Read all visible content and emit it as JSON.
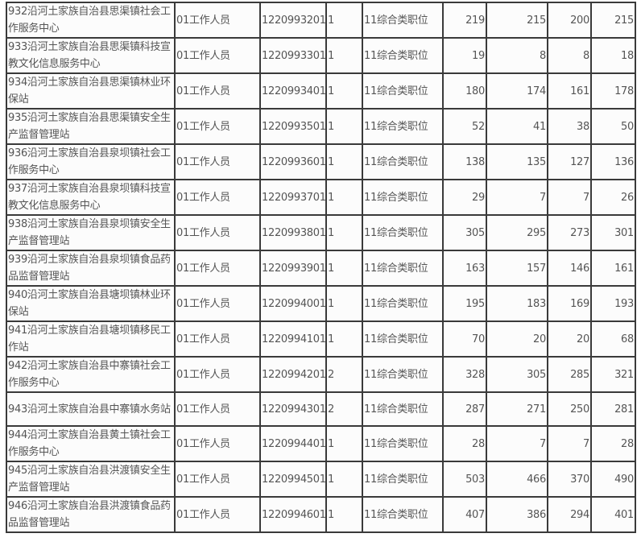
{
  "table": {
    "rows": [
      {
        "name": "932沿河土家族自治县思渠镇社会工作服务中心",
        "position": "01工作人员",
        "code": "1220993201",
        "count": "1",
        "category": "11综合类职位",
        "v1": "219",
        "v2": "215",
        "v3": "200",
        "v4": "215"
      },
      {
        "name": "933沿河土家族自治县思渠镇科技宣教文化信息服务中心",
        "position": "01工作人员",
        "code": "1220993301",
        "count": "1",
        "category": "11综合类职位",
        "v1": "19",
        "v2": "8",
        "v3": "8",
        "v4": "18"
      },
      {
        "name": "934沿河土家族自治县思渠镇林业环保站",
        "position": "01工作人员",
        "code": "1220993401",
        "count": "1",
        "category": "11综合类职位",
        "v1": "180",
        "v2": "174",
        "v3": "161",
        "v4": "178"
      },
      {
        "name": "935沿河土家族自治县思渠镇安全生产监督管理站",
        "position": "01工作人员",
        "code": "1220993501",
        "count": "1",
        "category": "11综合类职位",
        "v1": "52",
        "v2": "41",
        "v3": "38",
        "v4": "50"
      },
      {
        "name": "936沿河土家族自治县泉坝镇社会工作服务中心",
        "position": "01工作人员",
        "code": "1220993601",
        "count": "1",
        "category": "11综合类职位",
        "v1": "138",
        "v2": "135",
        "v3": "127",
        "v4": "136"
      },
      {
        "name": "937沿河土家族自治县泉坝镇科技宣教文化信息服务中心",
        "position": "01工作人员",
        "code": "1220993701",
        "count": "1",
        "category": "11综合类职位",
        "v1": "29",
        "v2": "7",
        "v3": "7",
        "v4": "26"
      },
      {
        "name": "938沿河土家族自治县泉坝镇安全生产监督管理站",
        "position": "01工作人员",
        "code": "1220993801",
        "count": "1",
        "category": "11综合类职位",
        "v1": "305",
        "v2": "295",
        "v3": "273",
        "v4": "301"
      },
      {
        "name": "939沿河土家族自治县泉坝镇食品药品监督管理站",
        "position": "01工作人员",
        "code": "1220993901",
        "count": "1",
        "category": "11综合类职位",
        "v1": "163",
        "v2": "157",
        "v3": "146",
        "v4": "161"
      },
      {
        "name": "940沿河土家族自治县塘坝镇林业环保站",
        "position": "01工作人员",
        "code": "1220994001",
        "count": "1",
        "category": "11综合类职位",
        "v1": "195",
        "v2": "183",
        "v3": "169",
        "v4": "193"
      },
      {
        "name": "941沿河土家族自治县塘坝镇移民工作站",
        "position": "01工作人员",
        "code": "1220994101",
        "count": "1",
        "category": "11综合类职位",
        "v1": "70",
        "v2": "20",
        "v3": "20",
        "v4": "68"
      },
      {
        "name": "942沿河土家族自治县中寨镇社会工作服务中心",
        "position": "01工作人员",
        "code": "1220994201",
        "count": "2",
        "category": "11综合类职位",
        "v1": "328",
        "v2": "305",
        "v3": "285",
        "v4": "321"
      },
      {
        "name": "943沿河土家族自治县中寨镇水务站",
        "position": "01工作人员",
        "code": "1220994301",
        "count": "2",
        "category": "11综合类职位",
        "v1": "287",
        "v2": "271",
        "v3": "250",
        "v4": "281"
      },
      {
        "name": "944沿河土家族自治县黄土镇社会工作服务中心",
        "position": "01工作人员",
        "code": "1220994401",
        "count": "1",
        "category": "11综合类职位",
        "v1": "28",
        "v2": "7",
        "v3": "7",
        "v4": "28"
      },
      {
        "name": "945沿河土家族自治县洪渡镇安全生产监督管理站",
        "position": "01工作人员",
        "code": "1220994501",
        "count": "1",
        "category": "11综合类职位",
        "v1": "503",
        "v2": "466",
        "v3": "370",
        "v4": "490"
      },
      {
        "name": "946沿河土家族自治县洪渡镇食品药品监督管理站",
        "position": "01工作人员",
        "code": "1220994601",
        "count": "1",
        "category": "11综合类职位",
        "v1": "407",
        "v2": "386",
        "v3": "294",
        "v4": "401"
      }
    ]
  }
}
